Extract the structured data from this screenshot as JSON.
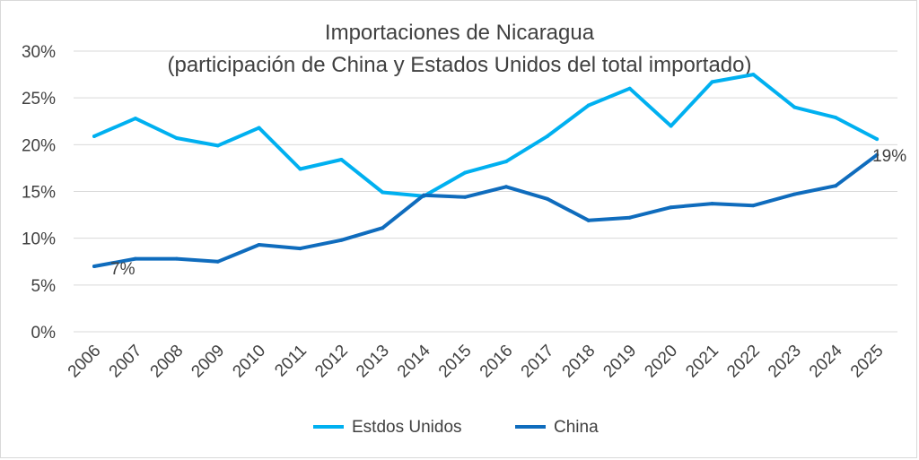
{
  "chart_data": {
    "type": "line",
    "title": "Importaciones de Nicaragua",
    "subtitle": "(participación de China y Estados Unidos del total importado)",
    "xlabel": "",
    "ylabel": "",
    "categories": [
      "2006",
      "2007",
      "2008",
      "2009",
      "2010",
      "2011",
      "2012",
      "2013",
      "2014",
      "2015",
      "2016",
      "2017",
      "2018",
      "2019",
      "2020",
      "2021",
      "2022",
      "2023",
      "2024",
      "2025"
    ],
    "ylim": [
      0,
      30
    ],
    "yticks": [
      "0%",
      "5%",
      "10%",
      "15%",
      "20%",
      "25%",
      "30%"
    ],
    "grid": true,
    "legend": "bottom",
    "series": [
      {
        "name": "Estdos Unidos",
        "color": "#00b0f0",
        "values": [
          20.9,
          22.8,
          20.7,
          19.9,
          21.8,
          17.4,
          18.4,
          14.9,
          14.5,
          17.0,
          18.2,
          20.9,
          24.2,
          26.0,
          22.0,
          26.7,
          27.5,
          24.0,
          22.9,
          20.6
        ]
      },
      {
        "name": "China",
        "color": "#0f6cbd",
        "values": [
          7.0,
          7.8,
          7.8,
          7.5,
          9.3,
          8.9,
          9.8,
          11.1,
          14.6,
          14.4,
          15.5,
          14.2,
          11.9,
          12.2,
          13.3,
          13.7,
          13.5,
          14.7,
          15.6,
          18.9
        ]
      }
    ],
    "annotations": [
      {
        "series": 1,
        "index": 0,
        "label": "7%"
      },
      {
        "series": 1,
        "index": 19,
        "label": "19%"
      }
    ]
  }
}
